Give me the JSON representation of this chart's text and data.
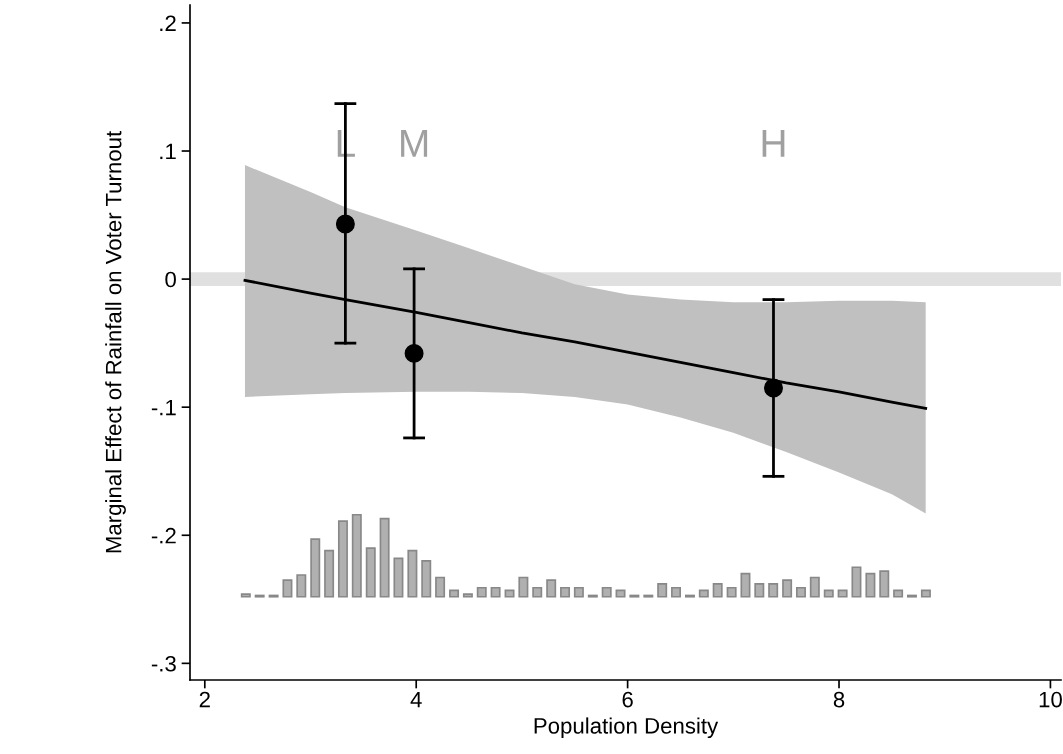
{
  "chart_data": {
    "type": "line",
    "xlabel": "Population Density",
    "ylabel": "Marginal Effect of Rainfall on Voter Turnout",
    "xlim": [
      1.86,
      10.1
    ],
    "ylim": [
      -0.313,
      0.214
    ],
    "xticks": [
      2,
      4,
      6,
      8,
      10
    ],
    "yticks": [
      {
        "value": 0.2,
        "label": ".2"
      },
      {
        "value": 0.1,
        "label": ".1"
      },
      {
        "value": 0,
        "label": "0"
      },
      {
        "value": -0.1,
        "label": "-.1"
      },
      {
        "value": -0.2,
        "label": "-.2"
      },
      {
        "value": -0.3,
        "label": "-.3"
      }
    ],
    "grid": false,
    "ref_lines": [
      {
        "axis": "y",
        "value": 0,
        "color": "#e0e0e0"
      }
    ],
    "annotations": [
      "L",
      "M",
      "H"
    ],
    "series": [
      {
        "type": "bar",
        "color": "#b0b0b0",
        "x": [
          2.388,
          2.519,
          2.651,
          2.782,
          2.913,
          3.045,
          3.176,
          3.307,
          3.438,
          3.57,
          3.701,
          3.832,
          3.964,
          4.095,
          4.226,
          4.358,
          4.489,
          4.62,
          4.751,
          4.883,
          5.014,
          5.145,
          5.277,
          5.408,
          5.539,
          5.671,
          5.802,
          5.933,
          6.064,
          6.196,
          6.327,
          6.458,
          6.59,
          6.721,
          6.852,
          6.984,
          7.115,
          7.246,
          7.377,
          7.509,
          7.64,
          7.771,
          7.903,
          8.034,
          8.165,
          8.297,
          8.428,
          8.559,
          8.69,
          8.822
        ],
        "values": [
          0.002,
          0.001,
          0.001,
          0.013,
          0.017,
          0.045,
          0.036,
          0.059,
          0.064,
          0.038,
          0.061,
          0.03,
          0.036,
          0.028,
          0.015,
          0.005,
          0.002,
          0.007,
          0.007,
          0.005,
          0.015,
          0.007,
          0.013,
          0.007,
          0.007,
          0.001,
          0.007,
          0.005,
          0.001,
          0.001,
          0.01,
          0.007,
          0.001,
          0.005,
          0.01,
          0.007,
          0.018,
          0.01,
          0.01,
          0.013,
          0.007,
          0.015,
          0.005,
          0.005,
          0.023,
          0.018,
          0.02,
          0.005,
          0.001,
          0.005
        ],
        "base": [
          -0.248,
          -0.248,
          -0.248,
          -0.248,
          -0.248,
          -0.248,
          -0.248,
          -0.248,
          -0.248,
          -0.248,
          -0.248,
          -0.248,
          -0.248,
          -0.248,
          -0.248,
          -0.248,
          -0.248,
          -0.248,
          -0.248,
          -0.248,
          -0.248,
          -0.248,
          -0.248,
          -0.248,
          -0.248,
          -0.248,
          -0.248,
          -0.248,
          -0.248,
          -0.248,
          -0.248,
          -0.248,
          -0.248,
          -0.248,
          -0.248,
          -0.248,
          -0.248,
          -0.248,
          -0.248,
          -0.248,
          -0.248,
          -0.248,
          -0.248,
          -0.248,
          -0.248,
          -0.248,
          -0.248,
          -0.248,
          -0.248,
          -0.248
        ]
      },
      {
        "color": "#000000",
        "x": [
          2.38,
          3.0,
          3.33,
          4.0,
          4.5,
          5.0,
          5.5,
          6.0,
          6.5,
          7.0,
          7.5,
          8.0,
          8.5,
          8.82
        ],
        "values": [
          -0.001,
          -0.011,
          -0.016,
          -0.026,
          -0.034,
          -0.042,
          -0.049,
          -0.057,
          -0.065,
          -0.073,
          -0.081,
          -0.088,
          -0.096,
          -0.101
        ],
        "upper": [
          0.089,
          0.068,
          0.056,
          0.038,
          0.024,
          0.01,
          -0.004,
          -0.012,
          -0.016,
          -0.018,
          -0.018,
          -0.017,
          -0.017,
          -0.018
        ],
        "lower": [
          -0.092,
          -0.09,
          -0.089,
          -0.088,
          -0.088,
          -0.089,
          -0.092,
          -0.098,
          -0.108,
          -0.12,
          -0.135,
          -0.151,
          -0.168,
          -0.183
        ]
      },
      {
        "type": "scatter",
        "color": "#000000",
        "marker": "circle",
        "x": [
          3.33,
          3.98,
          7.38
        ],
        "values": [
          0.043,
          -0.058,
          -0.085
        ],
        "errors": [
          [
            -0.05,
            0.137
          ],
          [
            -0.124,
            0.008
          ],
          [
            -0.154,
            -0.016
          ]
        ]
      }
    ]
  }
}
